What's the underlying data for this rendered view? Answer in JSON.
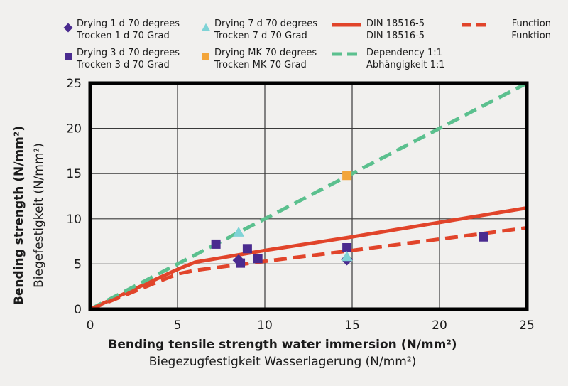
{
  "chart_data": {
    "type": "scatter",
    "xlim": [
      0,
      25
    ],
    "ylim": [
      0,
      25
    ],
    "x_ticks": [
      0,
      5,
      10,
      15,
      20,
      25
    ],
    "y_ticks": [
      0,
      5,
      10,
      15,
      20,
      25
    ],
    "grid": true,
    "legend_position": "top",
    "xlabel": "Bending tensile strength water immersion (N/mm²)",
    "xlabel_secondary": "Biegezugfestigkeit Wasserlagerung (N/mm²)",
    "ylabel": "Bending strength (N/mm²)",
    "ylabel_secondary": "Biegefestigkeit (N/mm²)",
    "series": [
      {
        "kind": "scatter",
        "marker": "diamond",
        "color": "#4a2b8f",
        "name": "Drying 1 d 70 degrees",
        "name_secondary": "Trocken 1 d 70 Grad",
        "points": [
          [
            8.5,
            5.4
          ],
          [
            14.7,
            5.5
          ]
        ]
      },
      {
        "kind": "scatter",
        "marker": "square",
        "color": "#4a2b8f",
        "name": "Drying 3 d 70 degrees",
        "name_secondary": "Trocken 3 d 70 Grad",
        "points": [
          [
            7.2,
            7.2
          ],
          [
            8.6,
            5.1
          ],
          [
            9.0,
            6.7
          ],
          [
            9.6,
            5.6
          ],
          [
            14.7,
            6.8
          ],
          [
            22.5,
            8.0
          ]
        ]
      },
      {
        "kind": "scatter",
        "marker": "triangle",
        "color": "#7fd3d6",
        "name": "Drying 7 d 70 degrees",
        "name_secondary": "Trocken 7 d 70 Grad",
        "points": [
          [
            8.5,
            8.5
          ],
          [
            14.7,
            5.8
          ]
        ]
      },
      {
        "kind": "scatter",
        "marker": "square",
        "color": "#f3a53a",
        "name": "Drying MK 70 degrees",
        "name_secondary": "Trocken MK 70 Grad",
        "points": [
          [
            14.7,
            14.8
          ]
        ]
      },
      {
        "kind": "line",
        "style": "solid",
        "color": "#e1442a",
        "name": "DIN 18516-5",
        "name_secondary": "DIN 18516-5",
        "points": [
          [
            0,
            0
          ],
          [
            5,
            4.4
          ],
          [
            6,
            5.2
          ],
          [
            10,
            6.5
          ],
          [
            15,
            8.0
          ],
          [
            25,
            11.2
          ]
        ]
      },
      {
        "kind": "line",
        "style": "dashed",
        "color": "#5bc08e",
        "name": "Dependency 1:1",
        "name_secondary": "Abhängigkeit 1:1",
        "points": [
          [
            0,
            0
          ],
          [
            25,
            25
          ]
        ]
      },
      {
        "kind": "line",
        "style": "dashed",
        "color": "#e1442a",
        "name": "Function",
        "name_secondary": "Funktion",
        "points": [
          [
            0,
            0
          ],
          [
            5,
            3.9
          ],
          [
            6,
            4.3
          ],
          [
            10,
            5.3
          ],
          [
            15,
            6.5
          ],
          [
            25,
            9.0
          ]
        ]
      }
    ]
  }
}
